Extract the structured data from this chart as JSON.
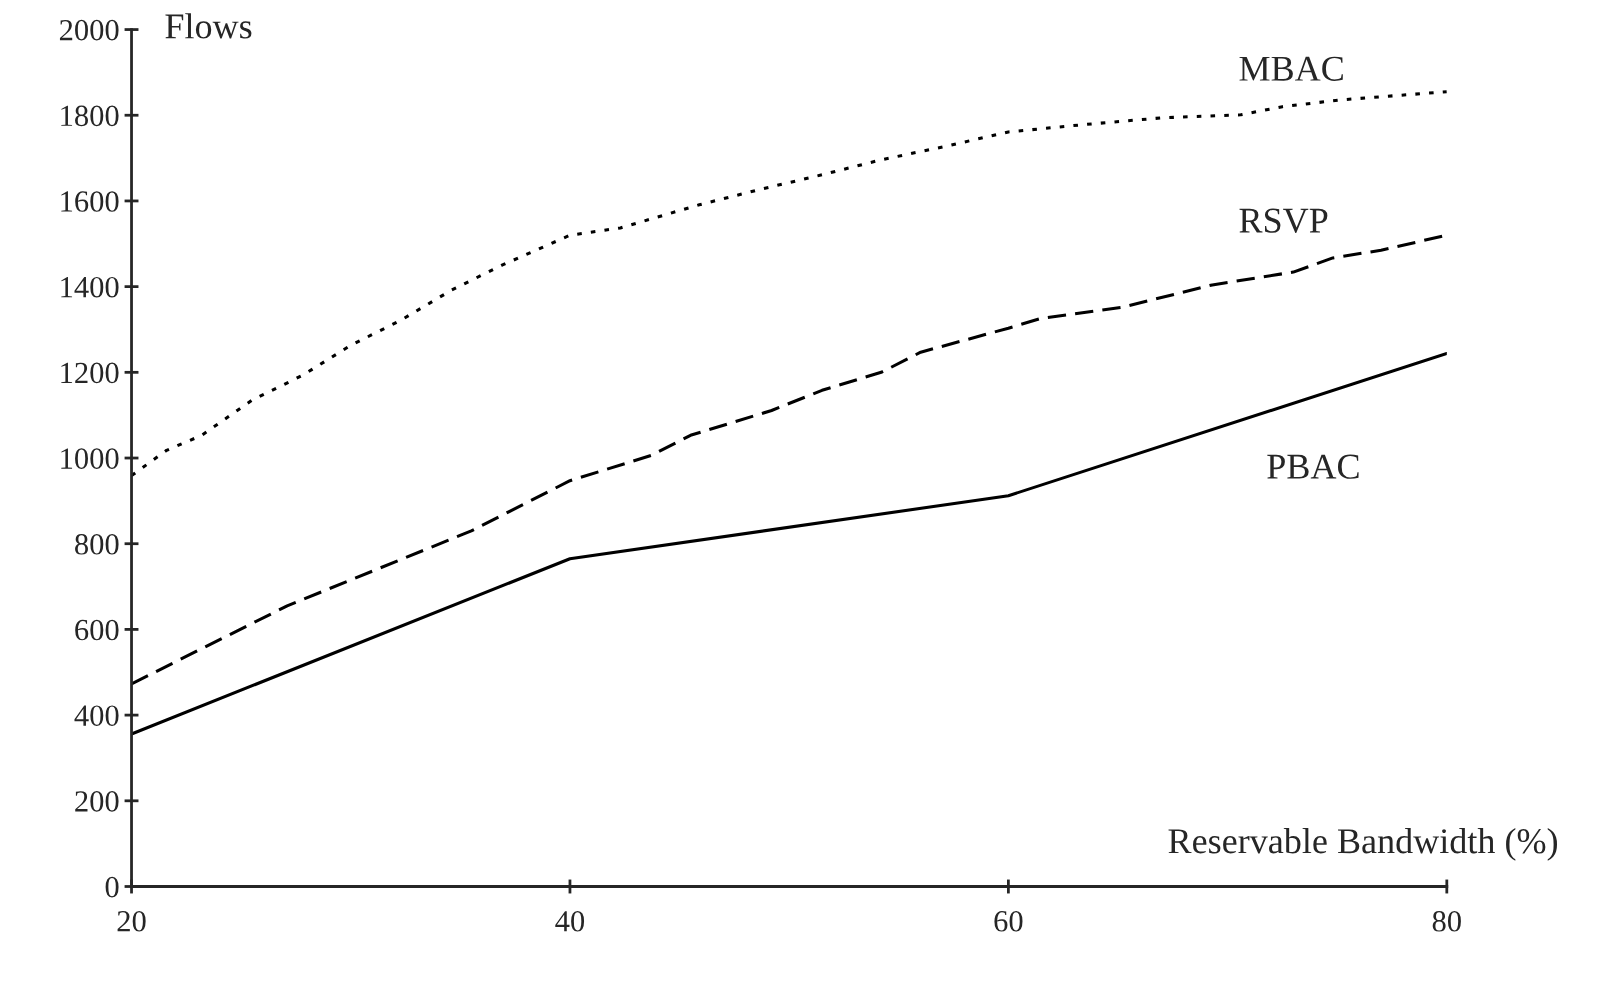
{
  "chart_data": {
    "type": "line",
    "xlabel": "Reservable Bandwidth (%)",
    "ylabel": "Flows",
    "xlim": [
      20,
      80
    ],
    "xticks": [
      20,
      40,
      60,
      80
    ],
    "ylim": [
      0,
      2000
    ],
    "yticks": [
      0,
      200,
      400,
      600,
      800,
      1000,
      1200,
      1400,
      1600,
      1800,
      2000
    ],
    "series": [
      {
        "name": "MBAC",
        "color": "#000000",
        "line_style": "dotted",
        "x": [
          20,
          21.6,
          23.2,
          25.5,
          27.8,
          30,
          32.3,
          34.6,
          36.9,
          40,
          42.3,
          45.9,
          48.6,
          51.5,
          54.2,
          57,
          60,
          63.4,
          67,
          70.6,
          72.5,
          75.2,
          80
        ],
        "values": [
          959,
          1018,
          1053,
          1135,
          1193,
          1263,
          1322,
          1392,
          1450,
          1520,
          1537,
          1591,
          1626,
          1661,
          1696,
          1726,
          1761,
          1778,
          1794,
          1801,
          1820,
          1836,
          1855
        ]
      },
      {
        "name": "RSVP",
        "color": "#000000",
        "line_style": "dashed",
        "x": [
          20,
          27.1,
          35.5,
          40,
          43.7,
          45.5,
          49.2,
          51.5,
          54.2,
          56,
          60,
          61.5,
          65.2,
          69.3,
          73,
          74.8,
          77,
          80
        ],
        "values": [
          473,
          655,
          830,
          947,
          1006,
          1053,
          1111,
          1158,
          1200,
          1247,
          1303,
          1326,
          1352,
          1404,
          1434,
          1467,
          1485,
          1520
        ]
      },
      {
        "name": "PBAC",
        "color": "#000000",
        "line_style": "solid",
        "x": [
          20,
          40,
          60,
          80
        ],
        "values": [
          356,
          765,
          912,
          1244
        ]
      }
    ]
  }
}
